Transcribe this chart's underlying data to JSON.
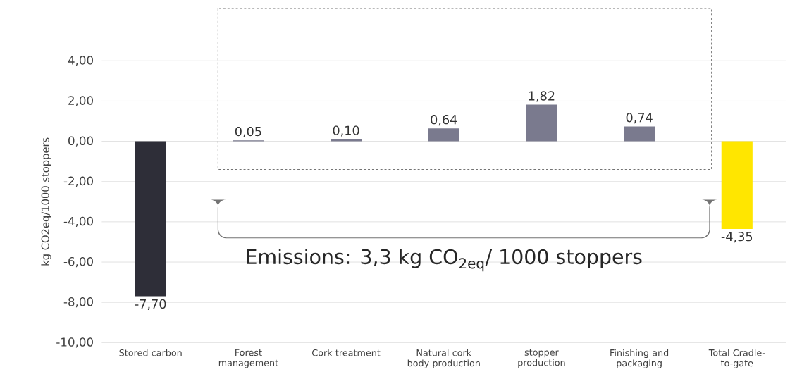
{
  "chart_data": {
    "type": "bar",
    "ylabel": "kg CO2eq/1000 stoppers",
    "categories": [
      "Stored carbon",
      "Forest management",
      "Cork treatment",
      "Natural cork body production",
      "stopper production",
      "Finishing and packaging",
      "Total Cradle-to-gate"
    ],
    "values": [
      -7.7,
      0.05,
      0.1,
      0.64,
      1.82,
      0.74,
      -4.35
    ],
    "value_labels": [
      "-7,70",
      "0,05",
      "0,10",
      "0,64",
      "1,82",
      "0,74",
      "-4,35"
    ],
    "colors": [
      "#2e2e38",
      "#7a7a8e",
      "#7a7a8e",
      "#7a7a8e",
      "#7a7a8e",
      "#7a7a8e",
      "#ffe600"
    ],
    "ylim": [
      -10,
      4
    ],
    "yticks": [
      {
        "value": -10,
        "label": "-10,00"
      },
      {
        "value": -8,
        "label": "-8,00"
      },
      {
        "value": -6,
        "label": "-6,00"
      },
      {
        "value": -4,
        "label": "-4,00"
      },
      {
        "value": -2,
        "label": "-2,00"
      },
      {
        "value": 0,
        "label": "0,00"
      },
      {
        "value": 2,
        "label": "2,00"
      },
      {
        "value": 4,
        "label": "4,00"
      }
    ],
    "grid": "y",
    "annotations": [
      "Emissions: 3,3 kg CO$_{2eq}$/ 1000 stoppers"
    ]
  }
}
